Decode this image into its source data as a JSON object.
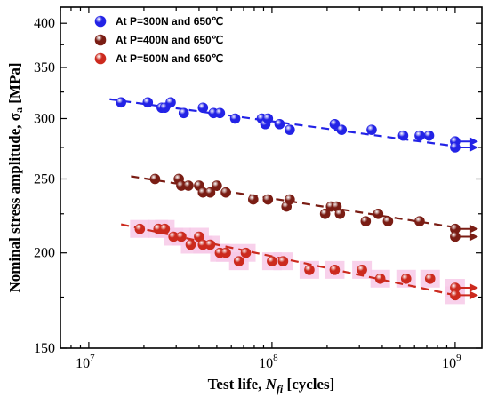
{
  "chart_data": {
    "type": "scatter",
    "xlabel_prefix": "Test life, ",
    "xlabel_symbol": "N",
    "xlabel_subscript": "fi",
    "xlabel_suffix": " [cycles]",
    "ylabel_prefix": "Nominal stress amplitude, σ",
    "ylabel_subscript": "a",
    "ylabel_suffix": " [MPa]",
    "xscale": "log",
    "yscale": "log",
    "xlim": [
      7000000,
      1400000000
    ],
    "ylim": [
      150,
      420
    ],
    "xticks": [
      {
        "value": 10000000,
        "base": "10",
        "exp": "7"
      },
      {
        "value": 100000000,
        "base": "10",
        "exp": "8"
      },
      {
        "value": 1000000000,
        "base": "10",
        "exp": "9"
      }
    ],
    "yticks": [
      150,
      200,
      250,
      300,
      350,
      400
    ],
    "legend_position": "top-left",
    "series": [
      {
        "name": "At P=300N and 650℃",
        "color": "#2323e6",
        "band": false,
        "points": [
          [
            15000000,
            315
          ],
          [
            21000000,
            315
          ],
          [
            25000000,
            310
          ],
          [
            26000000,
            310
          ],
          [
            28000000,
            315
          ],
          [
            33000000,
            305
          ],
          [
            42000000,
            310
          ],
          [
            48000000,
            305
          ],
          [
            52000000,
            305
          ],
          [
            63000000,
            300
          ],
          [
            88000000,
            300
          ],
          [
            92000000,
            295
          ],
          [
            95000000,
            300
          ],
          [
            110000000,
            295
          ],
          [
            125000000,
            290
          ],
          [
            220000000,
            295
          ],
          [
            240000000,
            290
          ],
          [
            350000000,
            290
          ],
          [
            520000000,
            285
          ],
          [
            640000000,
            285
          ],
          [
            720000000,
            285
          ]
        ],
        "runouts": [
          [
            1000000000,
            280
          ],
          [
            1000000000,
            275
          ]
        ],
        "trend": [
          [
            13000000,
            318
          ],
          [
            1000000000,
            276
          ]
        ]
      },
      {
        "name": "At P=400N and 650℃",
        "color": "#7a1d14",
        "band": false,
        "points": [
          [
            23000000,
            250
          ],
          [
            31000000,
            250
          ],
          [
            32000000,
            245
          ],
          [
            35000000,
            245
          ],
          [
            40000000,
            245
          ],
          [
            42000000,
            240
          ],
          [
            46000000,
            240
          ],
          [
            50000000,
            245
          ],
          [
            56000000,
            240
          ],
          [
            79000000,
            235
          ],
          [
            95000000,
            235
          ],
          [
            120000000,
            230
          ],
          [
            125000000,
            235
          ],
          [
            195000000,
            225
          ],
          [
            210000000,
            230
          ],
          [
            225000000,
            230
          ],
          [
            235000000,
            225
          ],
          [
            325000000,
            220
          ],
          [
            380000000,
            225
          ],
          [
            430000000,
            220
          ],
          [
            640000000,
            220
          ]
        ],
        "runouts": [
          [
            1000000000,
            215
          ],
          [
            1000000000,
            210
          ]
        ],
        "trend": [
          [
            17000000,
            252
          ],
          [
            1000000000,
            216
          ]
        ]
      },
      {
        "name": "At P=500N and 650℃",
        "color": "#cc2a1e",
        "band": true,
        "points": [
          [
            19000000,
            215
          ],
          [
            24000000,
            215
          ],
          [
            26000000,
            215
          ],
          [
            29000000,
            210
          ],
          [
            32000000,
            210
          ],
          [
            36000000,
            205
          ],
          [
            40000000,
            210
          ],
          [
            42000000,
            205
          ],
          [
            46000000,
            205
          ],
          [
            52000000,
            200
          ],
          [
            56000000,
            200
          ],
          [
            66000000,
            195
          ],
          [
            72000000,
            200
          ],
          [
            100000000,
            195
          ],
          [
            115000000,
            195
          ],
          [
            160000000,
            190
          ],
          [
            220000000,
            190
          ],
          [
            310000000,
            190
          ],
          [
            390000000,
            185
          ],
          [
            540000000,
            185
          ],
          [
            730000000,
            185
          ]
        ],
        "runouts": [
          [
            1000000000,
            180
          ],
          [
            1000000000,
            176
          ]
        ],
        "trend": [
          [
            15000000,
            218
          ],
          [
            1000000000,
            176
          ]
        ]
      }
    ]
  }
}
